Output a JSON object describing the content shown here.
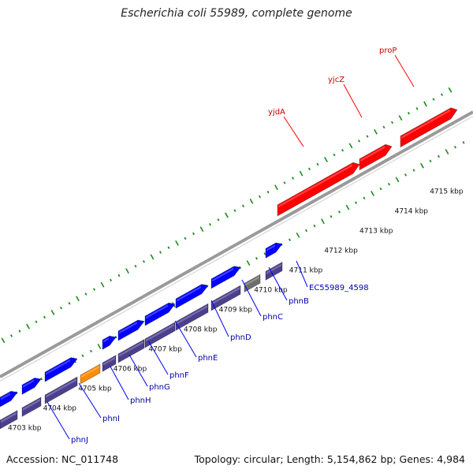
{
  "title": "Escherichia coli 55989, complete genome",
  "footer": {
    "accession": "Accession: NC_011748",
    "stats": "Topology: circular; Length: 5,154,862 bp; Genes: 4,984"
  },
  "colors": {
    "forward_gene": "#ff0000",
    "forward_label": "#cc0000",
    "reverse_cds": "#0000ff",
    "reverse_label": "#0000aa",
    "reverse_feature": "#4b3f8e",
    "highlighted_feature": "#ff8c00",
    "pseudo_feature": "#6e6e6e",
    "backbone": "#9a9a9a",
    "tick": "#1e8c1e"
  },
  "kbp_ticks": [
    "4703 kbp",
    "4704 kbp",
    "4705 kbp",
    "4706 kbp",
    "4707 kbp",
    "4708 kbp",
    "4709 kbp",
    "4710 kbp",
    "4711 kbp",
    "4712 kbp",
    "4713 kbp",
    "4714 kbp",
    "4715 kbp"
  ],
  "forward_genes": [
    {
      "name": "yjdA",
      "s": 352,
      "e": 456
    },
    {
      "name": "yjcZ",
      "s": 456,
      "e": 497
    },
    {
      "name": "proP",
      "s": 508,
      "e": 580
    }
  ],
  "reverse_genes": [
    {
      "name": "phnJ",
      "s": 0,
      "e": 22
    },
    {
      "name": "phnI",
      "s": 28,
      "e": 52
    },
    {
      "name": "phnH",
      "s": 57,
      "e": 98
    },
    {
      "name": "phnG",
      "s": 102,
      "e": 127
    },
    {
      "name": "phnF",
      "s": 130,
      "e": 147
    },
    {
      "name": "phnE",
      "s": 150,
      "e": 183
    },
    {
      "name": "phnD",
      "s": 184,
      "e": 222
    },
    {
      "name": "phnC",
      "s": 223,
      "e": 264
    },
    {
      "name": "phnB",
      "s": 268,
      "e": 305
    },
    {
      "name": "EC55989_4598",
      "s": 310,
      "e": 330
    },
    {
      "name": "",
      "s": 337,
      "e": 358
    }
  ]
}
